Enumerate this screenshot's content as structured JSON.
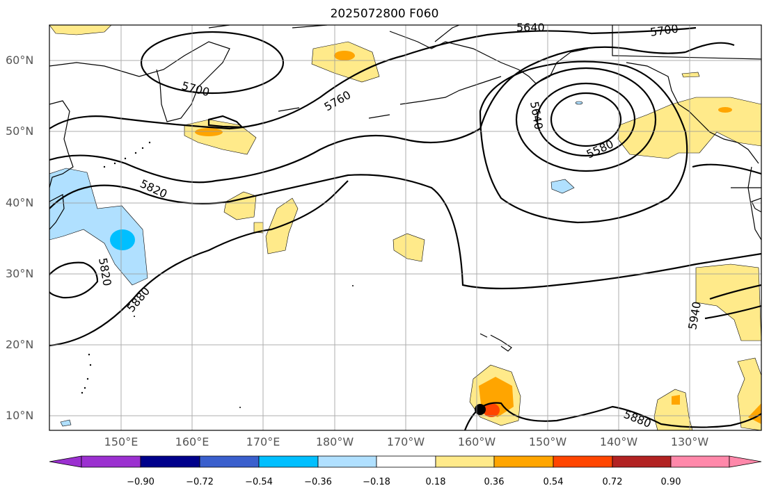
{
  "title": "2025072800 F060",
  "lat_labels": [
    "60°N",
    "50°N",
    "40°N",
    "30°N",
    "20°N",
    "10°N"
  ],
  "lon_labels": [
    "150°E",
    "160°E",
    "170°E",
    "180°W",
    "170°W",
    "160°W",
    "150°W",
    "140°W",
    "130°W"
  ],
  "contour_labels": [
    "5640",
    "5700",
    "5700",
    "5760",
    "5640",
    "5580",
    "5820",
    "5820",
    "5880",
    "5940",
    "5880"
  ],
  "colorbar": {
    "ticks": [
      "−0.90",
      "−0.72",
      "−0.54",
      "−0.36",
      "−0.18",
      "0.18",
      "0.36",
      "0.54",
      "0.72",
      "0.90"
    ],
    "colors": [
      "#9b30d0",
      "#00008b",
      "#3a5fcd",
      "#00bfff",
      "#b0e0ff",
      "#ffffff",
      "#ffea8a",
      "#ffa500",
      "#ff4500",
      "#b22222",
      "#ff88aa"
    ]
  }
}
